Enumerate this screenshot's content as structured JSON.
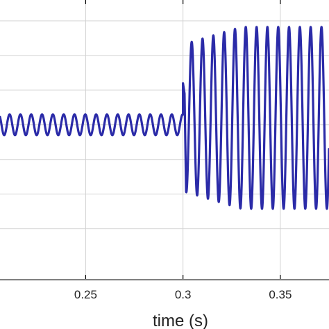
{
  "chart_data": {
    "type": "line",
    "title": "",
    "xlabel": "time (s)",
    "ylabel": "",
    "xlim": [
      0.206,
      0.375
    ],
    "ylim": [
      -6.45,
      1.6
    ],
    "grid": true,
    "x_ticks": [
      0.25,
      0.3,
      0.35
    ],
    "x_tick_labels": [
      "0.25",
      "0.3",
      "0.35"
    ],
    "y_gridlines": [
      1.0,
      0.0,
      -1.0,
      -2.0,
      -3.0,
      -4.0,
      -5.0
    ],
    "series": [
      {
        "color": "#2b2ba8",
        "signal": {
          "f_hz": 180,
          "pre": {
            "t_end": 0.3,
            "offset": -2.0,
            "amplitude": 0.3
          },
          "transient": {
            "t": 0.3,
            "spike_to": -0.8
          },
          "post": {
            "t_start": 0.3,
            "offset": -1.7,
            "amplitude_start": 2.3,
            "amplitude_end": 2.85,
            "settle_s": 0.03,
            "first_dip_to": -2.6
          }
        }
      }
    ]
  }
}
